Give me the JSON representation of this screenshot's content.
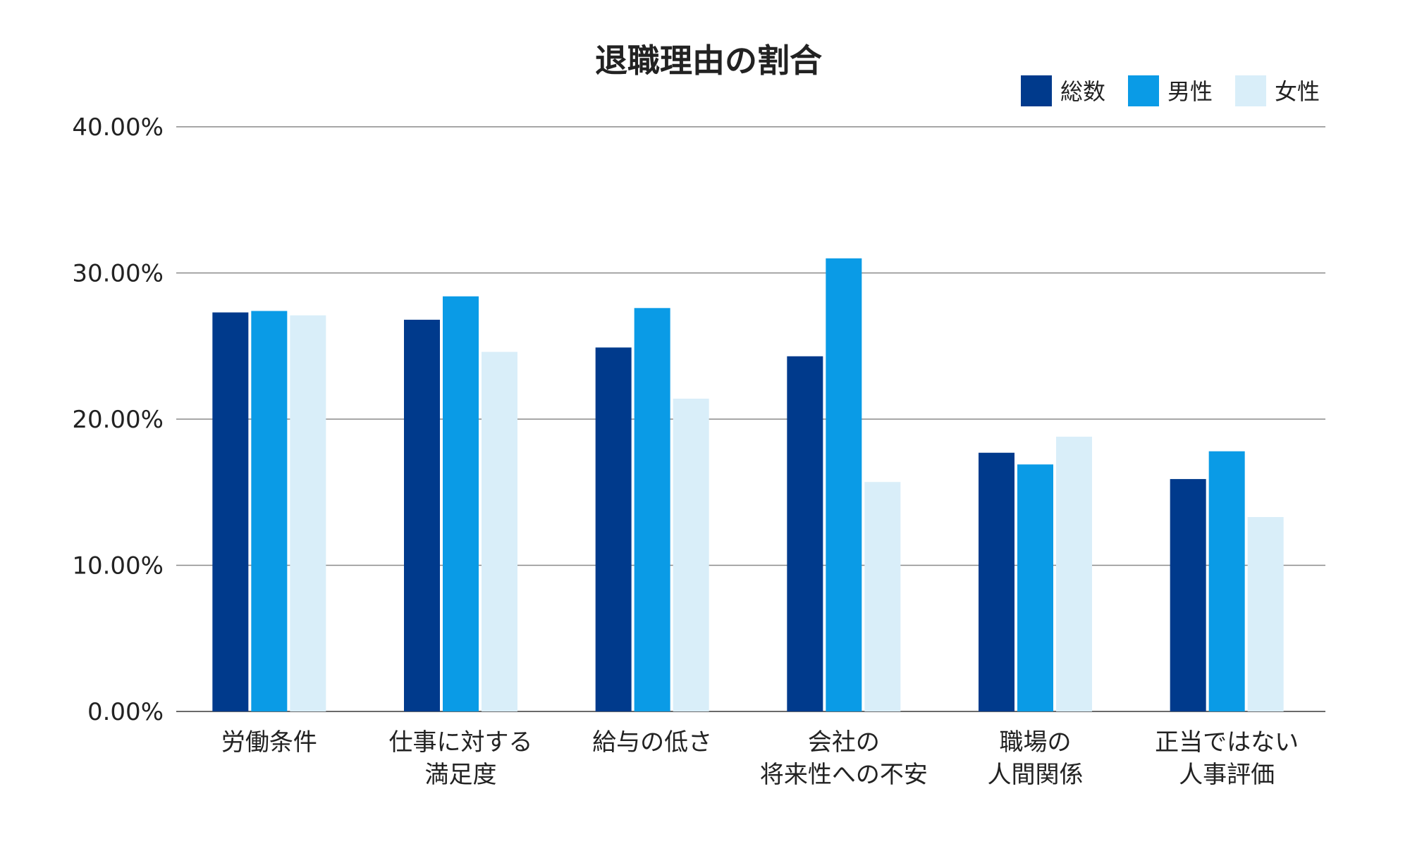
{
  "chart_data": {
    "type": "bar",
    "title": "退職理由の割合",
    "xlabel": "",
    "ylabel": "",
    "ylim": [
      0,
      40
    ],
    "ytick_labels": [
      "0.00%",
      "10.00%",
      "20.00%",
      "30.00%",
      "40.00%"
    ],
    "yticks": [
      0,
      10,
      20,
      30,
      40
    ],
    "grid": true,
    "legend_position": "top-right",
    "categories": [
      [
        "労働条件"
      ],
      [
        "仕事に対する",
        "満足度"
      ],
      [
        "給与の低さ"
      ],
      [
        "会社の",
        "将来性への不安"
      ],
      [
        "職場の",
        "人間関係"
      ],
      [
        "正当ではない",
        "人事評価"
      ]
    ],
    "series": [
      {
        "name": "総数",
        "color": "#003a8c",
        "values": [
          27.3,
          26.8,
          24.9,
          24.3,
          17.7,
          15.9
        ]
      },
      {
        "name": "男性",
        "color": "#0a9be6",
        "values": [
          27.4,
          28.4,
          27.6,
          31.0,
          16.9,
          17.8
        ]
      },
      {
        "name": "女性",
        "color": "#d9eef9",
        "values": [
          27.1,
          24.6,
          21.4,
          15.7,
          18.8,
          13.3
        ]
      }
    ]
  }
}
